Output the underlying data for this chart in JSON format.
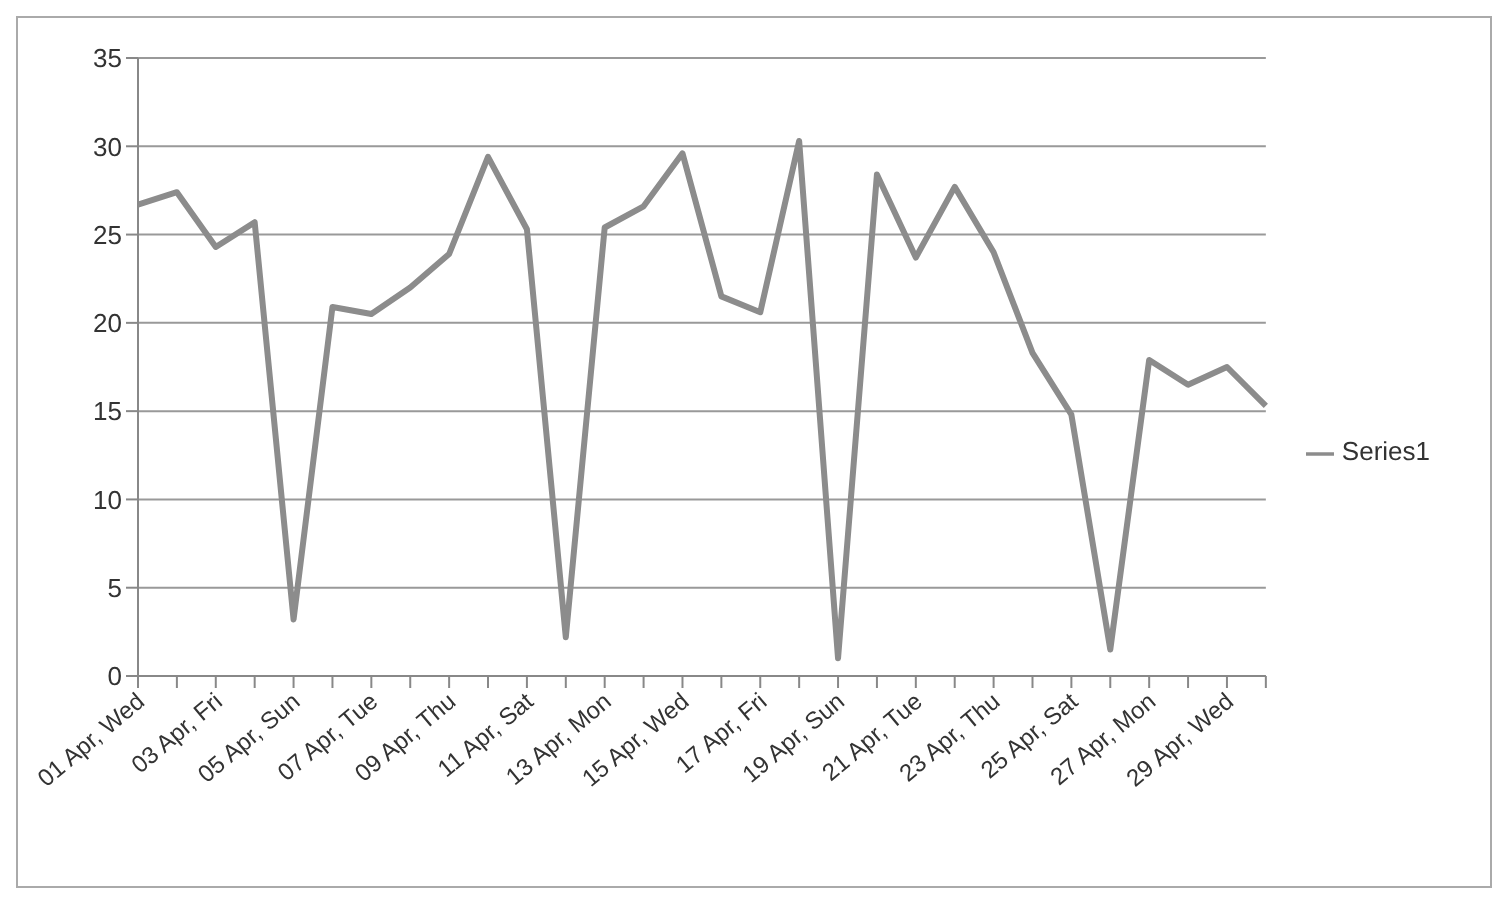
{
  "chart_data": {
    "type": "line",
    "categories": [
      "01 Apr, Wed",
      null,
      "03 Apr, Fri",
      null,
      "05 Apr, Sun",
      null,
      "07 Apr, Tue",
      null,
      "09 Apr, Thu",
      null,
      "11 Apr, Sat",
      null,
      "13 Apr, Mon",
      null,
      "15 Apr, Wed",
      null,
      "17 Apr, Fri",
      null,
      "19 Apr, Sun",
      null,
      "21 Apr, Tue",
      null,
      "23 Apr, Thu",
      null,
      "25 Apr, Sat",
      null,
      "27 Apr, Mon",
      null,
      "29 Apr, Wed",
      null
    ],
    "series": [
      {
        "name": "Series1",
        "color": "#8c8c8c",
        "values": [
          26.7,
          27.4,
          24.3,
          25.7,
          3.2,
          20.9,
          20.5,
          22.0,
          23.9,
          29.4,
          25.3,
          2.2,
          25.4,
          26.6,
          29.6,
          21.5,
          20.6,
          30.3,
          1.0,
          28.4,
          23.7,
          27.7,
          24.0,
          18.3,
          14.8,
          1.5,
          17.9,
          16.5,
          17.5,
          15.3
        ]
      }
    ],
    "ylim": [
      0,
      35
    ],
    "yticks": [
      0,
      5,
      10,
      15,
      20,
      25,
      30,
      35
    ],
    "grid": "y",
    "legend": "right",
    "marker": "none",
    "line_style": "solid"
  }
}
